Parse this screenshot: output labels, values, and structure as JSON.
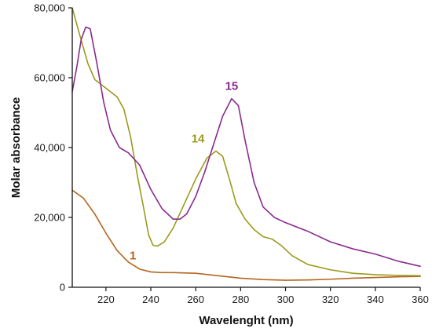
{
  "chart_data": {
    "type": "line",
    "title": "",
    "xlabel": "Wavelenght (nm)",
    "ylabel": "Molar absorbance",
    "xlim": [
      205,
      360
    ],
    "ylim": [
      0,
      80000
    ],
    "x_ticks": [
      220,
      240,
      260,
      280,
      300,
      320,
      340,
      360
    ],
    "y_ticks": [
      0,
      20000,
      40000,
      60000,
      80000
    ],
    "x_tick_labels": [
      "220",
      "240",
      "260",
      "280",
      "300",
      "320",
      "340",
      "360"
    ],
    "y_tick_labels": [
      "0",
      "20,000",
      "40,000",
      "60,000",
      "80,000"
    ],
    "grid": false,
    "legend": "none",
    "series": [
      {
        "name": "1",
        "color": "#b5651d",
        "label_at": [
          232,
          8000
        ],
        "points": [
          [
            205,
            27800
          ],
          [
            210,
            25500
          ],
          [
            215,
            21000
          ],
          [
            220,
            15500
          ],
          [
            225,
            10500
          ],
          [
            230,
            7200
          ],
          [
            235,
            5200
          ],
          [
            240,
            4400
          ],
          [
            245,
            4200
          ],
          [
            250,
            4200
          ],
          [
            260,
            4000
          ],
          [
            270,
            3300
          ],
          [
            280,
            2600
          ],
          [
            290,
            2200
          ],
          [
            300,
            2000
          ],
          [
            310,
            2100
          ],
          [
            320,
            2300
          ],
          [
            330,
            2600
          ],
          [
            340,
            2800
          ],
          [
            350,
            3000
          ],
          [
            360,
            3100
          ]
        ]
      },
      {
        "name": "14",
        "color": "#9a9a1c",
        "label_at": [
          261,
          41500
        ],
        "points": [
          [
            205,
            80000
          ],
          [
            208,
            73000
          ],
          [
            212,
            64000
          ],
          [
            215,
            59500
          ],
          [
            220,
            57000
          ],
          [
            225,
            54500
          ],
          [
            228,
            51000
          ],
          [
            231,
            43000
          ],
          [
            234,
            32000
          ],
          [
            237,
            22000
          ],
          [
            239,
            15000
          ],
          [
            241,
            12000
          ],
          [
            243,
            11800
          ],
          [
            246,
            13000
          ],
          [
            250,
            17000
          ],
          [
            255,
            24000
          ],
          [
            260,
            31000
          ],
          [
            265,
            37000
          ],
          [
            269,
            39000
          ],
          [
            272,
            37500
          ],
          [
            275,
            31000
          ],
          [
            278,
            24000
          ],
          [
            282,
            19500
          ],
          [
            286,
            16500
          ],
          [
            290,
            14500
          ],
          [
            294,
            13800
          ],
          [
            298,
            12000
          ],
          [
            303,
            9000
          ],
          [
            310,
            6500
          ],
          [
            320,
            5000
          ],
          [
            330,
            4000
          ],
          [
            340,
            3600
          ],
          [
            350,
            3400
          ],
          [
            360,
            3300
          ]
        ]
      },
      {
        "name": "15",
        "color": "#8a2a8f",
        "label_at": [
          276,
          56500
        ],
        "points": [
          [
            205,
            56000
          ],
          [
            207,
            63000
          ],
          [
            209,
            71000
          ],
          [
            211,
            74500
          ],
          [
            213,
            74000
          ],
          [
            216,
            64000
          ],
          [
            219,
            53000
          ],
          [
            222,
            45000
          ],
          [
            226,
            40000
          ],
          [
            230,
            38500
          ],
          [
            235,
            35000
          ],
          [
            240,
            28000
          ],
          [
            245,
            22500
          ],
          [
            250,
            19500
          ],
          [
            253,
            19500
          ],
          [
            256,
            21000
          ],
          [
            260,
            26000
          ],
          [
            264,
            33000
          ],
          [
            268,
            41000
          ],
          [
            272,
            49000
          ],
          [
            276,
            54000
          ],
          [
            279,
            52000
          ],
          [
            282,
            42000
          ],
          [
            286,
            30000
          ],
          [
            290,
            23000
          ],
          [
            295,
            20000
          ],
          [
            300,
            18500
          ],
          [
            310,
            16000
          ],
          [
            320,
            13000
          ],
          [
            330,
            11000
          ],
          [
            340,
            9500
          ],
          [
            350,
            7500
          ],
          [
            360,
            6000
          ]
        ]
      }
    ]
  }
}
